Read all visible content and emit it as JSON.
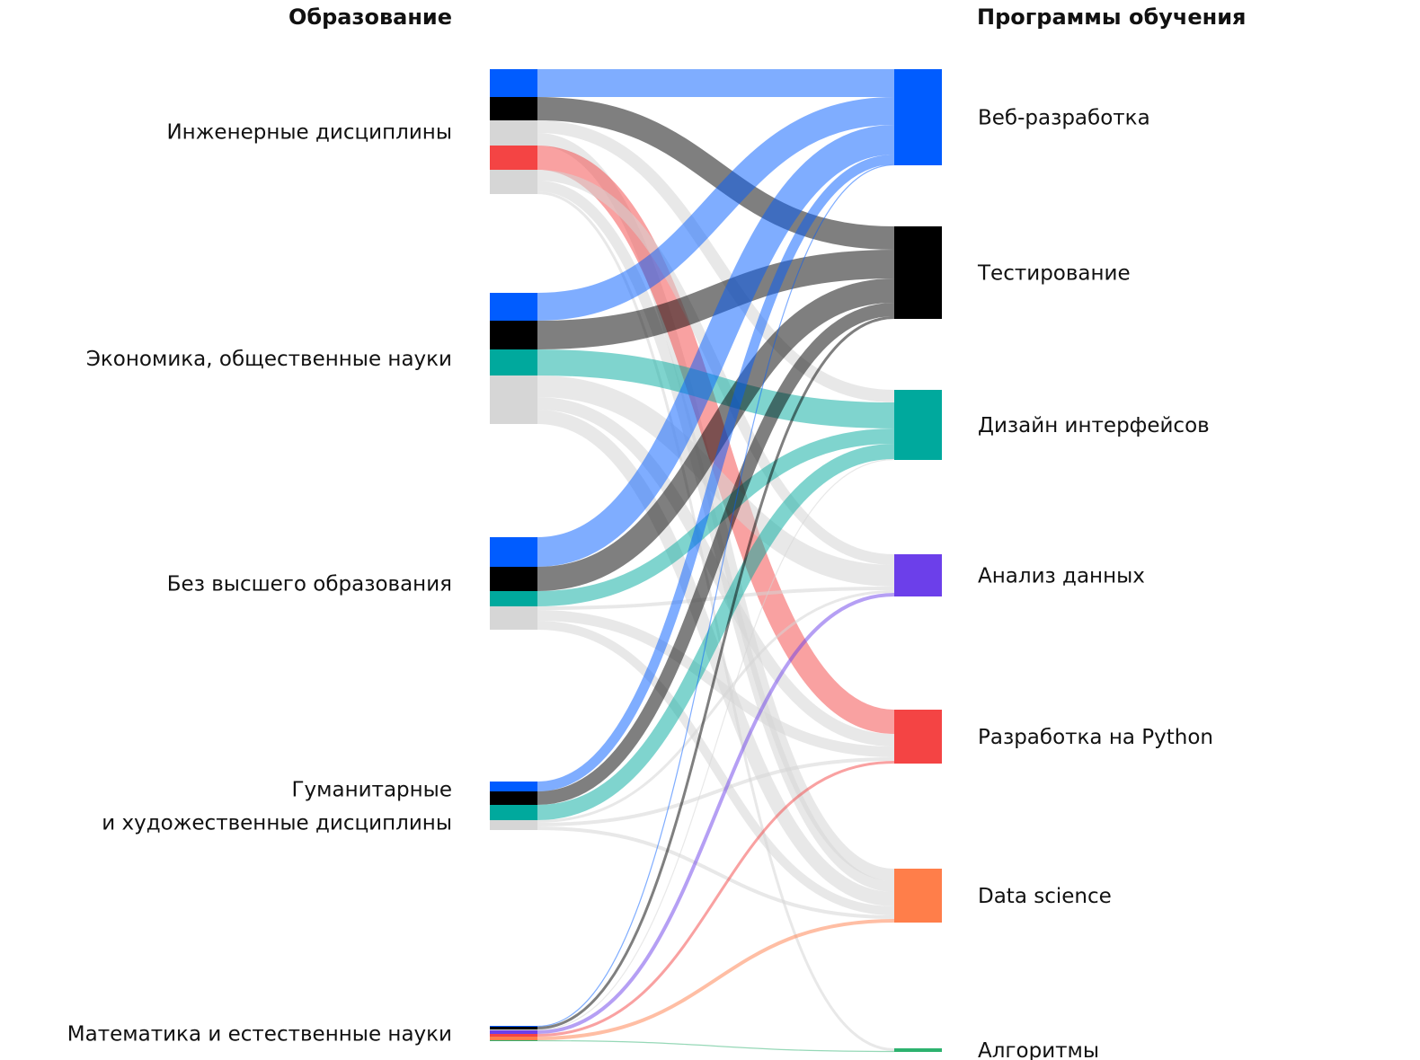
{
  "headers": {
    "left": "Образование",
    "right": "Программы обучения"
  },
  "colors": {
    "web": "#005cff",
    "test": "#000000",
    "design": "#00a99d",
    "analysis": "#6c3fea",
    "python": "#f44444",
    "ds": "#ff7e4a",
    "algo": "#2db26f",
    "neutral": "#d6d6d6"
  },
  "chart_data": {
    "type": "sankey",
    "sources": [
      {
        "id": "eng",
        "label": [
          "Инженерные  дисциплины"
        ]
      },
      {
        "id": "econ",
        "label": [
          "Экономика, общественные науки"
        ]
      },
      {
        "id": "none",
        "label": [
          "Без высшего образования"
        ]
      },
      {
        "id": "hum",
        "label": [
          "Гуманитарные",
          "и художественные дисциплины"
        ]
      },
      {
        "id": "math",
        "label": [
          "Математика и естественные науки"
        ]
      }
    ],
    "targets": [
      {
        "id": "web",
        "label": "Веб-разработка"
      },
      {
        "id": "test",
        "label": "Тестирование"
      },
      {
        "id": "design",
        "label": "Дизайн интерфейсов"
      },
      {
        "id": "analysis",
        "label": "Анализ данных"
      },
      {
        "id": "python",
        "label": "Разработка на Python"
      },
      {
        "id": "ds",
        "label": "Data science"
      },
      {
        "id": "algo",
        "label": "Алгоритмы"
      }
    ],
    "links": [
      {
        "source": "eng",
        "target": "web",
        "value": 31
      },
      {
        "source": "eng",
        "target": "test",
        "value": 26
      },
      {
        "source": "eng",
        "target": "design",
        "value": 14
      },
      {
        "source": "eng",
        "target": "ds",
        "value": 14
      },
      {
        "source": "eng",
        "target": "python",
        "value": 27
      },
      {
        "source": "eng",
        "target": "analysis",
        "value": 12
      },
      {
        "source": "eng",
        "target": "ds",
        "value": 12
      },
      {
        "source": "eng",
        "target": "algo",
        "value": 3
      },
      {
        "source": "econ",
        "target": "web",
        "value": 31
      },
      {
        "source": "econ",
        "target": "test",
        "value": 32
      },
      {
        "source": "econ",
        "target": "design",
        "value": 29
      },
      {
        "source": "econ",
        "target": "analysis",
        "value": 24
      },
      {
        "source": "econ",
        "target": "python",
        "value": 14
      },
      {
        "source": "econ",
        "target": "ds",
        "value": 16
      },
      {
        "source": "none",
        "target": "web",
        "value": 33
      },
      {
        "source": "none",
        "target": "test",
        "value": 27
      },
      {
        "source": "none",
        "target": "design",
        "value": 17
      },
      {
        "source": "none",
        "target": "analysis",
        "value": 4
      },
      {
        "source": "none",
        "target": "python",
        "value": 12
      },
      {
        "source": "none",
        "target": "ds",
        "value": 10
      },
      {
        "source": "hum",
        "target": "web",
        "value": 11
      },
      {
        "source": "hum",
        "target": "test",
        "value": 15
      },
      {
        "source": "hum",
        "target": "design",
        "value": 17
      },
      {
        "source": "hum",
        "target": "analysis",
        "value": 3
      },
      {
        "source": "hum",
        "target": "python",
        "value": 4
      },
      {
        "source": "hum",
        "target": "ds",
        "value": 4
      },
      {
        "source": "math",
        "target": "web",
        "value": 1
      },
      {
        "source": "math",
        "target": "test",
        "value": 3
      },
      {
        "source": "math",
        "target": "design",
        "value": 1
      },
      {
        "source": "math",
        "target": "analysis",
        "value": 4
      },
      {
        "source": "math",
        "target": "python",
        "value": 3
      },
      {
        "source": "math",
        "target": "ds",
        "value": 4
      },
      {
        "source": "math",
        "target": "algo",
        "value": 1
      }
    ]
  }
}
